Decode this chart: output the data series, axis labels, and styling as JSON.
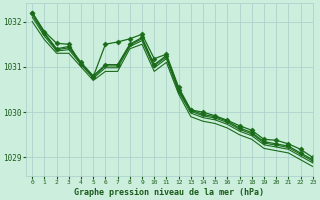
{
  "title": "Graphe pression niveau de la mer (hPa)",
  "bg_color": "#cceedd",
  "grid_color": "#aacccc",
  "line_color": "#1a6b1a",
  "text_color": "#1a5c1a",
  "xlim": [
    -0.5,
    23
  ],
  "ylim": [
    1028.6,
    1032.4
  ],
  "yticks": [
    1029,
    1030,
    1031,
    1032
  ],
  "xticks": [
    0,
    1,
    2,
    3,
    4,
    5,
    6,
    7,
    8,
    9,
    10,
    11,
    12,
    13,
    14,
    15,
    16,
    17,
    18,
    19,
    20,
    21,
    22,
    23
  ],
  "series": [
    {
      "x": [
        0,
        1,
        2,
        3,
        4,
        5,
        6,
        7,
        8,
        9,
        10,
        11,
        12,
        13,
        14,
        15,
        16,
        17,
        18,
        19,
        20,
        21,
        22,
        23
      ],
      "y": [
        1032.2,
        1031.75,
        1031.4,
        1031.45,
        1031.1,
        1030.8,
        1031.05,
        1031.05,
        1031.5,
        1031.65,
        1031.05,
        1031.25,
        1030.5,
        1030.05,
        1029.95,
        1029.9,
        1029.8,
        1029.65,
        1029.55,
        1029.35,
        1029.3,
        1029.25,
        1029.1,
        1028.95
      ],
      "marker": "D",
      "markersize": 2.5,
      "linewidth": 0.9
    },
    {
      "x": [
        0,
        1,
        2,
        3,
        4,
        5,
        6,
        7,
        8,
        9,
        10,
        11,
        12,
        13,
        14,
        15,
        16,
        17,
        18,
        19,
        20,
        21,
        22,
        23
      ],
      "y": [
        1032.15,
        1031.72,
        1031.38,
        1031.42,
        1031.08,
        1030.78,
        1031.02,
        1031.02,
        1031.48,
        1031.62,
        1031.02,
        1031.22,
        1030.48,
        1030.02,
        1029.92,
        1029.87,
        1029.77,
        1029.62,
        1029.52,
        1029.32,
        1029.27,
        1029.22,
        1029.07,
        1028.92
      ],
      "marker": null,
      "markersize": 0,
      "linewidth": 0.8
    },
    {
      "x": [
        0,
        1,
        2,
        3,
        4,
        5,
        6,
        7,
        8,
        9,
        10,
        11,
        12,
        13,
        14,
        15,
        16,
        17,
        18,
        19,
        20,
        21,
        22,
        23
      ],
      "y": [
        1032.1,
        1031.68,
        1031.35,
        1031.38,
        1031.05,
        1030.75,
        1030.98,
        1030.98,
        1031.45,
        1031.58,
        1030.98,
        1031.18,
        1030.45,
        1029.98,
        1029.88,
        1029.83,
        1029.73,
        1029.58,
        1029.48,
        1029.28,
        1029.23,
        1029.18,
        1029.03,
        1028.88
      ],
      "marker": null,
      "markersize": 0,
      "linewidth": 0.8
    },
    {
      "x": [
        0,
        1,
        2,
        3,
        4,
        5,
        6,
        7,
        8,
        9,
        10,
        11,
        12,
        13,
        14,
        15,
        16,
        17,
        18,
        19,
        20,
        21,
        22,
        23
      ],
      "y": [
        1032.0,
        1031.6,
        1031.3,
        1031.3,
        1031.0,
        1030.7,
        1030.9,
        1030.9,
        1031.4,
        1031.5,
        1030.9,
        1031.1,
        1030.4,
        1029.9,
        1029.8,
        1029.75,
        1029.65,
        1029.5,
        1029.4,
        1029.2,
        1029.15,
        1029.1,
        1028.95,
        1028.8
      ],
      "marker": null,
      "markersize": 0,
      "linewidth": 0.8
    },
    {
      "x": [
        0,
        1,
        2,
        3,
        4,
        5,
        6,
        7,
        8,
        9,
        10,
        11,
        12,
        13,
        14,
        15,
        16,
        17,
        18,
        19,
        20,
        21,
        22,
        23
      ],
      "y": [
        1032.2,
        1031.78,
        1031.52,
        1031.5,
        1031.06,
        1030.78,
        1031.5,
        1031.55,
        1031.62,
        1031.72,
        1031.18,
        1031.28,
        1030.55,
        1030.05,
        1030.0,
        1029.92,
        1029.82,
        1029.7,
        1029.6,
        1029.4,
        1029.38,
        1029.3,
        1029.18,
        1029.0
      ],
      "marker": "D",
      "markersize": 2.5,
      "linewidth": 0.9
    }
  ]
}
